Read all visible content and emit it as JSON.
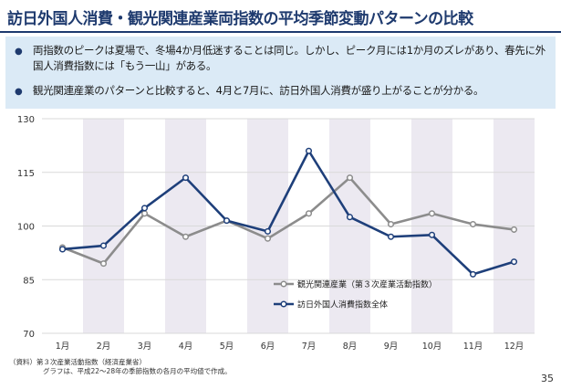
{
  "slide": {
    "title": "訪日外国人消費・観光関連産業両指数の平均季節変動パターンの比較",
    "bullets": [
      "両指数のピークは夏場で、冬場4か月低迷することは同じ。しかし、ピーク月には1か月のズレがあり、春先に外国人消費指数には「もう一山」がある。",
      "観光関連産業のパターンと比較すると、4月と7月に、訪日外国人消費が盛り上がることが分かる。"
    ],
    "source_line1": "（資料）第３次産業活動指数（経済産業省）",
    "source_line2": "グラフは、平成22～28年の季節指数の各月の平均値で作成。",
    "page_number": "35"
  },
  "colors": {
    "title": "#1e3a6e",
    "summary_bg": "#dbeaf6",
    "band": "#ece9f1"
  },
  "chart_data": {
    "type": "line",
    "categories": [
      "1月",
      "2月",
      "3月",
      "4月",
      "5月",
      "6月",
      "7月",
      "8月",
      "9月",
      "10月",
      "11月",
      "12月"
    ],
    "yticks": [
      "130",
      "115",
      "100",
      "85",
      "70"
    ],
    "ylim": [
      70,
      130
    ],
    "ystep": 15,
    "grid": "horizontal",
    "alternating_bands": true,
    "legend_position": "center-right",
    "series": [
      {
        "name": "観光関連産業（第３次産業活動指数）",
        "color": "#8c8c8c",
        "values": [
          94,
          89.5,
          103.5,
          97,
          101.5,
          96.5,
          103.5,
          113.5,
          100.5,
          103.5,
          100.5,
          99
        ]
      },
      {
        "name": "訪日外国人消費指数全体",
        "color": "#1e3f7a",
        "values": [
          93.5,
          94.5,
          105,
          113.5,
          101.5,
          98.5,
          121,
          102.5,
          97,
          97.5,
          86.5,
          90
        ]
      }
    ]
  }
}
